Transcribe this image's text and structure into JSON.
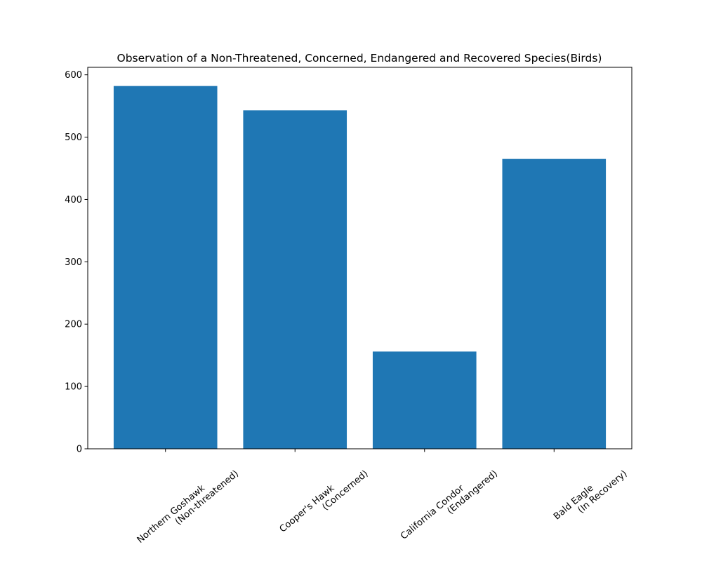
{
  "chart_data": {
    "type": "bar",
    "title": "Observation of a Non-Threatened, Concerned, Endangered and Recovered Species(Birds)",
    "xlabel": "",
    "ylabel": "",
    "categories": [
      {
        "line1": "Northern Goshawk",
        "line2": "(Non-threatened)"
      },
      {
        "line1": "Cooper's Hawk",
        "line2": "(Concerned)"
      },
      {
        "line1": "California Condor",
        "line2": "(Endangered)"
      },
      {
        "line1": "Bald Eagle",
        "line2": "(In Recovery)"
      }
    ],
    "values": [
      582,
      543,
      156,
      465
    ],
    "ylim": [
      0,
      612
    ],
    "yticks": [
      0,
      100,
      200,
      300,
      400,
      500,
      600
    ],
    "bar_color": "#1f77b4",
    "grid": false,
    "legend": "none"
  }
}
